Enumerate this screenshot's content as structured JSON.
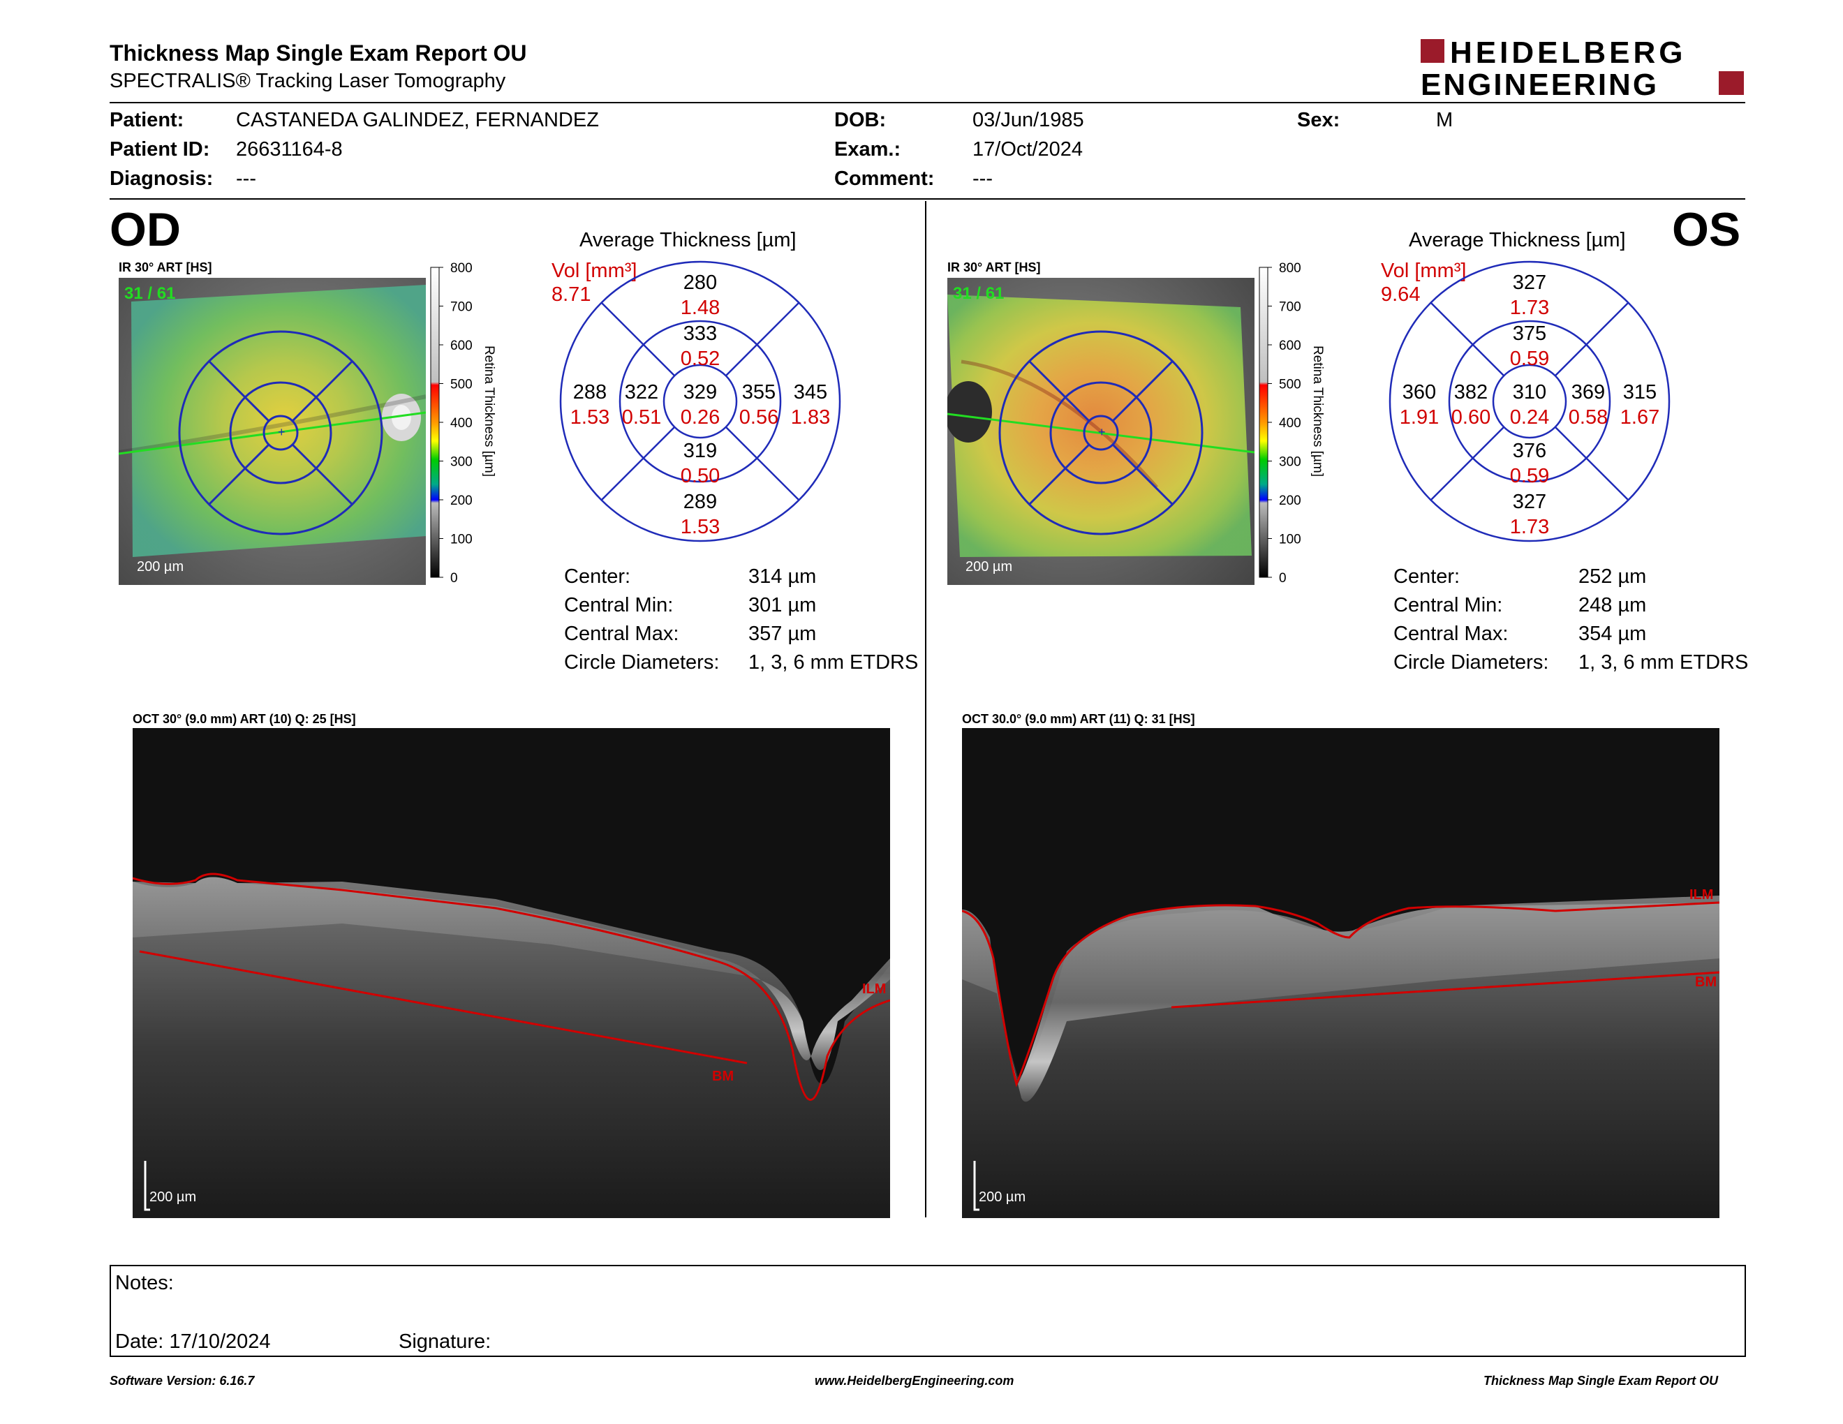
{
  "header": {
    "title": "Thickness Map Single Exam Report OU",
    "subtitle": "SPECTRALIS® Tracking Laser Tomography",
    "logo_line1": "HEIDELBERG",
    "logo_line2": "ENGINEERING"
  },
  "patient": {
    "patient_label": "Patient:",
    "patient_value": "CASTANEDA GALINDEZ, FERNANDEZ",
    "id_label": "Patient ID:",
    "id_value": "26631164-8",
    "diagnosis_label": "Diagnosis:",
    "diagnosis_value": "---",
    "dob_label": "DOB:",
    "dob_value": "03/Jun/1985",
    "exam_label": "Exam.:",
    "exam_value": "17/Oct/2024",
    "comment_label": "Comment:",
    "comment_value": "---",
    "sex_label": "Sex:",
    "sex_value": "M"
  },
  "colorbar": {
    "ticks": [
      "800",
      "700",
      "600",
      "500",
      "400",
      "300",
      "200",
      "100",
      "0"
    ],
    "label": "Retina Thickness [µm]"
  },
  "od": {
    "eye": "OD",
    "ir_label": "IR 30° ART [HS]",
    "ir_counter": "31 / 61",
    "ir_scale": "200 µm",
    "avg_title": "Average Thickness [µm]",
    "vol_label": "Vol [mm³]",
    "vol_value": "8.71",
    "etdrs": {
      "center": {
        "thickness": "329",
        "volume": "0.26"
      },
      "inner_superior": {
        "thickness": "333",
        "volume": "0.52"
      },
      "inner_inferior": {
        "thickness": "319",
        "volume": "0.50"
      },
      "inner_left": {
        "thickness": "322",
        "volume": "0.51"
      },
      "inner_right": {
        "thickness": "355",
        "volume": "0.56"
      },
      "outer_superior": {
        "thickness": "280",
        "volume": "1.48"
      },
      "outer_inferior": {
        "thickness": "289",
        "volume": "1.53"
      },
      "outer_left": {
        "thickness": "288",
        "volume": "1.53"
      },
      "outer_right": {
        "thickness": "345",
        "volume": "1.83"
      }
    },
    "stats": {
      "center_label": "Center:",
      "center_value": "314 µm",
      "min_label": "Central Min:",
      "min_value": "301 µm",
      "max_label": "Central Max:",
      "max_value": "357 µm",
      "diam_label": "Circle Diameters:",
      "diam_value": "1, 3, 6 mm ETDRS"
    },
    "oct_label": "OCT 30° (9.0 mm) ART (10) Q: 25 [HS]",
    "oct_scale": "200 µm",
    "ilm": "ILM",
    "bm": "BM"
  },
  "os": {
    "eye": "OS",
    "ir_label": "IR 30° ART [HS]",
    "ir_counter": "31 / 61",
    "ir_scale": "200 µm",
    "avg_title": "Average Thickness [µm]",
    "vol_label": "Vol [mm³]",
    "vol_value": "9.64",
    "etdrs": {
      "center": {
        "thickness": "310",
        "volume": "0.24"
      },
      "inner_superior": {
        "thickness": "375",
        "volume": "0.59"
      },
      "inner_inferior": {
        "thickness": "376",
        "volume": "0.59"
      },
      "inner_left": {
        "thickness": "382",
        "volume": "0.60"
      },
      "inner_right": {
        "thickness": "369",
        "volume": "0.58"
      },
      "outer_superior": {
        "thickness": "327",
        "volume": "1.73"
      },
      "outer_inferior": {
        "thickness": "327",
        "volume": "1.73"
      },
      "outer_left": {
        "thickness": "360",
        "volume": "1.91"
      },
      "outer_right": {
        "thickness": "315",
        "volume": "1.67"
      }
    },
    "stats": {
      "center_label": "Center:",
      "center_value": "252 µm",
      "min_label": "Central Min:",
      "min_value": "248 µm",
      "max_label": "Central Max:",
      "max_value": "354 µm",
      "diam_label": "Circle Diameters:",
      "diam_value": "1, 3, 6 mm ETDRS"
    },
    "oct_label": "OCT 30.0° (9.0 mm) ART (11) Q: 31 [HS]",
    "oct_scale": "200 µm",
    "ilm": "ILM",
    "bm": "BM"
  },
  "notes": {
    "notes_label": "Notes:",
    "date_label": "Date: 17/10/2024",
    "signature_label": "Signature:"
  },
  "footer": {
    "software": "Software Version: 6.16.7",
    "website": "www.HeidelbergEngineering.com",
    "report": "Thickness Map Single Exam Report OU"
  },
  "colors": {
    "red_value": "#d10000",
    "etdrs_blue": "#1f2bb8",
    "logo_red": "#9b1b2a",
    "scan_line": "#22dd22"
  }
}
